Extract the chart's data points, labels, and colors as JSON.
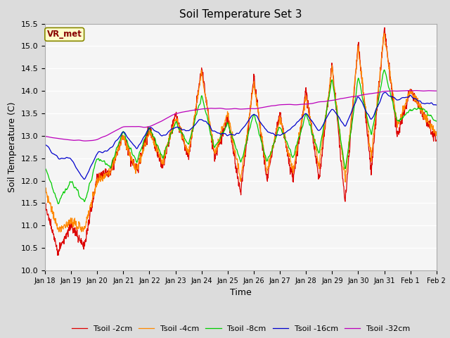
{
  "title": "Soil Temperature Set 3",
  "xlabel": "Time",
  "ylabel": "Soil Temperature (C)",
  "ylim": [
    10.0,
    15.5
  ],
  "yticks": [
    10.0,
    10.5,
    11.0,
    11.5,
    12.0,
    12.5,
    13.0,
    13.5,
    14.0,
    14.5,
    15.0,
    15.5
  ],
  "bg_color": "#dcdcdc",
  "plot_bg_color": "#f5f5f5",
  "line_colors": {
    "2cm": "#dd0000",
    "4cm": "#ff8800",
    "8cm": "#00cc00",
    "16cm": "#0000cc",
    "32cm": "#bb00bb"
  },
  "legend_labels": [
    "Tsoil -2cm",
    "Tsoil -4cm",
    "Tsoil -8cm",
    "Tsoil -16cm",
    "Tsoil -32cm"
  ],
  "vr_met_label": "VR_met",
  "vr_met_bg": "#ffffcc",
  "vr_met_border": "#888800",
  "vr_met_text_color": "#880000",
  "xtick_labels": [
    "Jan 18",
    "Jan 19",
    "Jan 20",
    "Jan 21",
    "Jan 22",
    "Jan 23",
    "Jan 24",
    "Jan 25",
    "Jan 26",
    "Jan 27",
    "Jan 28",
    "Jan 29",
    "Jan 30",
    "Jan 31",
    "Feb 1",
    "Feb 2"
  ],
  "n_points": 1344
}
